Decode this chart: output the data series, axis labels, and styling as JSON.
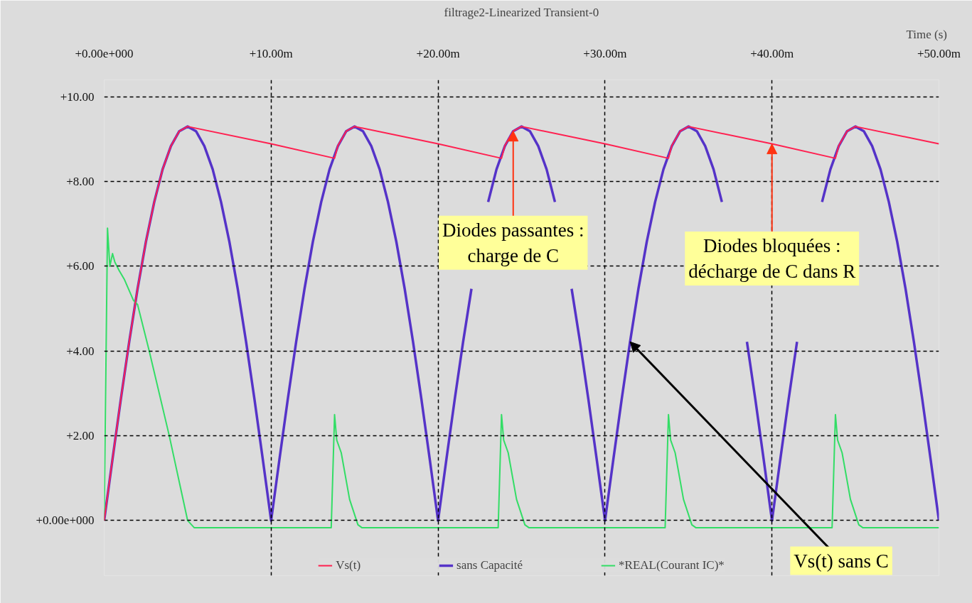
{
  "chart_data": {
    "type": "line",
    "title": "filtrage2-Linearized Transient-0",
    "xlabel": "Time   (s)",
    "xlim": [
      0,
      50
    ],
    "ylim": [
      -1.3,
      10.4
    ],
    "xticks": [
      {
        "value": 0,
        "label": "+0.00e+000"
      },
      {
        "value": 10,
        "label": "+10.00m"
      },
      {
        "value": 20,
        "label": "+20.00m"
      },
      {
        "value": 30,
        "label": "+30.00m"
      },
      {
        "value": 40,
        "label": "+40.00m"
      },
      {
        "value": 50,
        "label": "+50.00m"
      }
    ],
    "yticks": [
      {
        "value": 0,
        "label": "+0.00e+000"
      },
      {
        "value": 2,
        "label": "+2.00"
      },
      {
        "value": 4,
        "label": "+4.00"
      },
      {
        "value": 6,
        "label": "+6.00"
      },
      {
        "value": 8,
        "label": "+8.00"
      },
      {
        "value": 10,
        "label": "+10.00"
      }
    ],
    "grid": true,
    "legend": "bottom",
    "line_style": "solid",
    "marker": "none",
    "series": [
      {
        "name": "Vs(t)",
        "color": "#ff2050",
        "x": [
          0,
          0.5,
          1,
          1.5,
          2,
          2.5,
          3,
          3.5,
          4,
          4.5,
          5,
          10,
          13.8,
          14,
          14.5,
          15,
          20,
          23.8,
          24,
          24.5,
          25,
          30,
          33.8,
          34,
          34.5,
          35,
          40,
          43.8,
          44,
          44.5,
          45,
          50
        ],
        "values": [
          0,
          1.45,
          2.87,
          4.22,
          5.47,
          6.58,
          7.52,
          8.29,
          8.84,
          9.19,
          9.3,
          8.89,
          8.55,
          8.85,
          9.19,
          9.3,
          8.89,
          8.55,
          8.85,
          9.19,
          9.3,
          8.89,
          8.55,
          8.85,
          9.19,
          9.3,
          8.89,
          8.55,
          8.85,
          9.19,
          9.3,
          8.89
        ]
      },
      {
        "name": "sans Capacité",
        "color": "#5533c8",
        "x": [
          0,
          0.5,
          1,
          1.5,
          2,
          2.5,
          3,
          3.5,
          4,
          4.5,
          5,
          5.5,
          6,
          6.5,
          7,
          7.5,
          8,
          8.5,
          9,
          9.5,
          10,
          10.5,
          11,
          11.5,
          12,
          12.5,
          13,
          13.5,
          14,
          14.5,
          15,
          15.5,
          16,
          16.5,
          17,
          17.5,
          18,
          18.5,
          19,
          19.5,
          20,
          20.5,
          21,
          21.5,
          22,
          22.5,
          23,
          23.5,
          24,
          24.5,
          25,
          25.5,
          26,
          26.5,
          27,
          27.5,
          28,
          28.5,
          29,
          29.5,
          30,
          30.5,
          31,
          31.5,
          32,
          32.5,
          33,
          33.5,
          34,
          34.5,
          35,
          35.5,
          36,
          36.5,
          37,
          37.5,
          38,
          38.5,
          39,
          39.5,
          40,
          40.5,
          41,
          41.5,
          42,
          42.5,
          43,
          43.5,
          44,
          44.5,
          45,
          45.5,
          46,
          46.5,
          47,
          47.5,
          48,
          48.5,
          49,
          49.5,
          50
        ],
        "values": [
          0,
          1.45,
          2.87,
          4.22,
          5.47,
          6.58,
          7.52,
          8.29,
          8.84,
          9.19,
          9.3,
          9.19,
          8.84,
          8.29,
          7.52,
          6.58,
          5.47,
          4.22,
          2.87,
          1.45,
          0,
          1.45,
          2.87,
          4.22,
          5.47,
          6.58,
          7.52,
          8.29,
          8.84,
          9.19,
          9.3,
          9.19,
          8.84,
          8.29,
          7.52,
          6.58,
          5.47,
          4.22,
          2.87,
          1.45,
          0,
          1.45,
          2.87,
          4.22,
          5.47,
          null,
          7.52,
          8.29,
          8.84,
          9.19,
          9.3,
          9.19,
          8.84,
          8.29,
          7.52,
          null,
          5.47,
          4.22,
          2.87,
          1.45,
          0,
          1.45,
          2.87,
          4.22,
          5.47,
          6.58,
          7.52,
          8.29,
          8.84,
          9.19,
          9.3,
          9.19,
          8.84,
          8.29,
          7.52,
          null,
          null,
          4.22,
          2.87,
          1.45,
          0,
          1.45,
          2.87,
          4.22,
          null,
          null,
          7.52,
          8.29,
          8.84,
          9.19,
          9.3,
          9.19,
          8.84,
          8.29,
          7.52,
          6.58,
          5.47,
          4.22,
          2.87,
          1.45,
          0
        ]
      },
      {
        "name": "*REAL(Courant IC)*",
        "color": "#33dd66",
        "x": [
          0,
          0.2,
          0.34,
          0.5,
          0.64,
          0.9,
          1.2,
          1.75,
          2,
          2.7,
          3.9,
          5,
          5.4,
          13.6,
          13.8,
          13.93,
          14.2,
          14.7,
          15.2,
          15.45,
          23.6,
          23.8,
          23.93,
          24.2,
          24.7,
          25.2,
          25.45,
          33.6,
          33.8,
          33.93,
          34.2,
          34.7,
          35.2,
          35.45,
          43.6,
          43.8,
          43.93,
          44.2,
          44.7,
          45.2,
          45.45,
          50
        ],
        "values": [
          0,
          6.9,
          6.0,
          6.3,
          6.1,
          5.9,
          5.7,
          5.2,
          5.1,
          4.0,
          2.0,
          0.0,
          -0.17,
          -0.17,
          2.5,
          1.9,
          1.6,
          0.5,
          -0.1,
          -0.17,
          -0.17,
          2.5,
          1.9,
          1.6,
          0.5,
          -0.1,
          -0.17,
          -0.17,
          2.5,
          1.9,
          1.6,
          0.5,
          -0.1,
          -0.17,
          -0.17,
          2.5,
          1.9,
          1.6,
          0.5,
          -0.1,
          -0.17,
          -0.17
        ]
      }
    ],
    "annotations": [
      {
        "text": "Diodes passantes :\ncharge de C",
        "x": 24.5,
        "y": 9.19
      },
      {
        "text": "Diodes bloquées :\ndécharge de C dans R",
        "x": 40,
        "y": 8.89
      },
      {
        "text": "Vs(t) sans C",
        "x": 31.5,
        "y": 4.22
      }
    ]
  }
}
